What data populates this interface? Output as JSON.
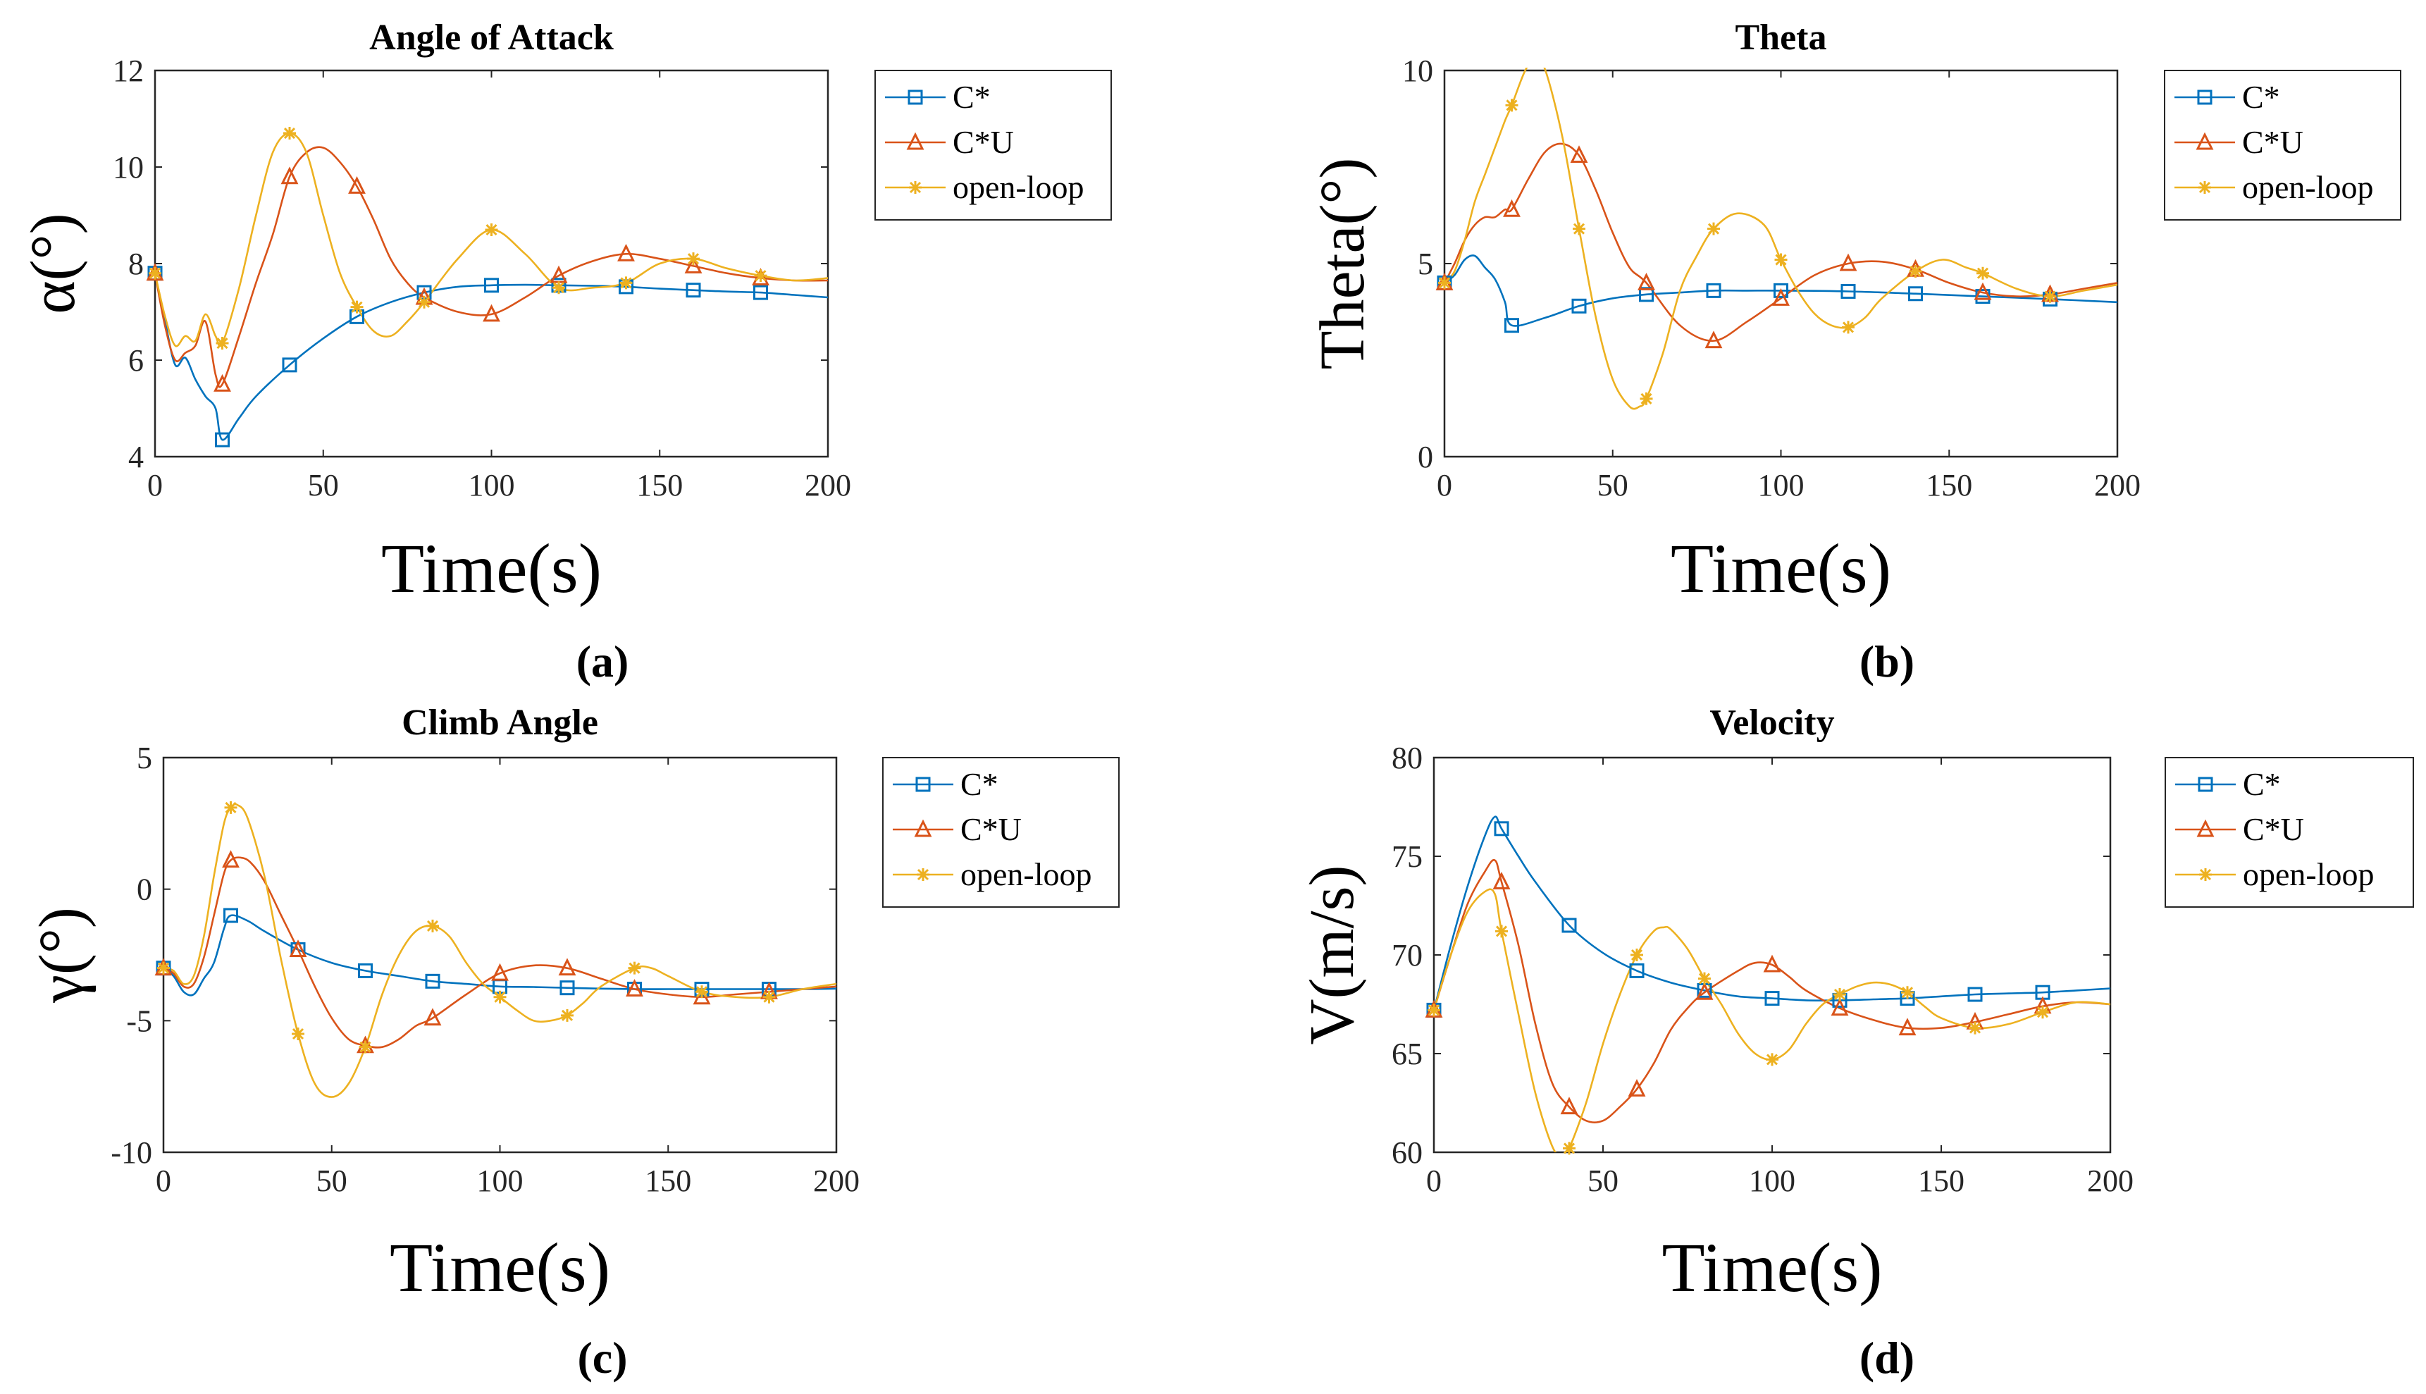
{
  "chart_data": [
    {
      "type": "line",
      "title": "Angle of Attack",
      "xlabel": "Time(s)",
      "ylabel": "α(°)",
      "caption_letter": "a",
      "xlim": [
        0,
        200
      ],
      "ylim": [
        4,
        12
      ],
      "xticks": [
        0,
        50,
        100,
        150,
        200
      ],
      "yticks": [
        4,
        6,
        8,
        10,
        12
      ],
      "legend": "outside-right",
      "series": [
        {
          "name": "C*",
          "color": "#0072BD",
          "marker": "square",
          "x": [
            0,
            3,
            6,
            9,
            12,
            15,
            18,
            20,
            25,
            30,
            40,
            50,
            60,
            70,
            80,
            90,
            100,
            110,
            120,
            130,
            140,
            150,
            160,
            170,
            180,
            190,
            200
          ],
          "y": [
            7.8,
            6.8,
            5.9,
            6.05,
            5.6,
            5.25,
            5.0,
            4.35,
            4.8,
            5.25,
            5.9,
            6.45,
            6.9,
            7.2,
            7.4,
            7.52,
            7.55,
            7.56,
            7.55,
            7.54,
            7.52,
            7.48,
            7.45,
            7.42,
            7.4,
            7.35,
            7.3
          ]
        },
        {
          "name": "C*U",
          "color": "#D95319",
          "marker": "triangle",
          "x": [
            0,
            3,
            6,
            9,
            12,
            15,
            18,
            20,
            25,
            30,
            35,
            40,
            45,
            50,
            55,
            60,
            65,
            70,
            75,
            80,
            90,
            100,
            110,
            120,
            130,
            140,
            150,
            160,
            170,
            180,
            190,
            200
          ],
          "y": [
            7.8,
            6.7,
            6.0,
            6.15,
            6.3,
            6.8,
            5.7,
            5.5,
            6.5,
            7.6,
            8.6,
            9.8,
            10.3,
            10.4,
            10.1,
            9.6,
            8.9,
            8.1,
            7.6,
            7.3,
            7.0,
            6.95,
            7.3,
            7.75,
            8.05,
            8.2,
            8.1,
            7.95,
            7.8,
            7.7,
            7.65,
            7.65
          ]
        },
        {
          "name": "open-loop",
          "color": "#EDB120",
          "marker": "star",
          "x": [
            0,
            3,
            6,
            9,
            12,
            15,
            18,
            20,
            25,
            30,
            35,
            40,
            45,
            50,
            55,
            60,
            65,
            70,
            75,
            80,
            90,
            100,
            110,
            120,
            130,
            140,
            150,
            160,
            170,
            180,
            190,
            200
          ],
          "y": [
            7.8,
            6.9,
            6.3,
            6.5,
            6.4,
            6.95,
            6.5,
            6.35,
            7.5,
            9.0,
            10.3,
            10.7,
            10.3,
            9.0,
            7.8,
            7.1,
            6.6,
            6.5,
            6.8,
            7.2,
            8.1,
            8.7,
            8.2,
            7.5,
            7.5,
            7.6,
            8.0,
            8.1,
            7.9,
            7.75,
            7.65,
            7.7
          ]
        }
      ]
    },
    {
      "type": "line",
      "title": "Theta",
      "xlabel": "Time(s)",
      "ylabel": "Theta(°)",
      "caption_letter": "b",
      "xlim": [
        0,
        200
      ],
      "ylim": [
        0,
        10
      ],
      "xticks": [
        0,
        50,
        100,
        150,
        200
      ],
      "yticks": [
        0,
        5,
        10
      ],
      "legend": "outside-right",
      "series": [
        {
          "name": "C*",
          "color": "#0072BD",
          "marker": "square",
          "x": [
            0,
            3,
            6,
            9,
            12,
            15,
            18,
            20,
            30,
            40,
            50,
            60,
            70,
            80,
            90,
            100,
            120,
            140,
            160,
            180,
            200
          ],
          "y": [
            4.5,
            4.7,
            5.1,
            5.2,
            4.9,
            4.6,
            4.0,
            3.4,
            3.6,
            3.9,
            4.1,
            4.2,
            4.25,
            4.3,
            4.3,
            4.3,
            4.28,
            4.22,
            4.15,
            4.08,
            4.0
          ]
        },
        {
          "name": "C*U",
          "color": "#D95319",
          "marker": "triangle",
          "x": [
            0,
            3,
            6,
            9,
            12,
            15,
            18,
            20,
            25,
            30,
            35,
            40,
            45,
            50,
            55,
            60,
            70,
            80,
            90,
            100,
            110,
            120,
            130,
            140,
            150,
            160,
            170,
            180,
            190,
            200
          ],
          "y": [
            4.5,
            5.0,
            5.6,
            6.0,
            6.2,
            6.2,
            6.4,
            6.4,
            7.2,
            7.9,
            8.1,
            7.8,
            6.9,
            5.8,
            4.9,
            4.5,
            3.4,
            3.0,
            3.5,
            4.1,
            4.7,
            5.0,
            5.05,
            4.85,
            4.5,
            4.25,
            4.15,
            4.2,
            4.35,
            4.5
          ]
        },
        {
          "name": "open-loop",
          "color": "#EDB120",
          "marker": "star",
          "x": [
            0,
            3,
            6,
            9,
            12,
            15,
            18,
            20,
            24,
            27,
            30,
            35,
            40,
            45,
            50,
            55,
            58,
            60,
            65,
            70,
            75,
            80,
            87,
            95,
            100,
            105,
            110,
            115,
            120,
            125,
            130,
            140,
            148,
            155,
            160,
            170,
            180,
            190,
            200
          ],
          "y": [
            4.5,
            4.8,
            5.6,
            6.6,
            7.3,
            8.0,
            8.7,
            9.1,
            10.0,
            10.3,
            10.0,
            8.3,
            5.9,
            3.6,
            2.0,
            1.3,
            1.3,
            1.5,
            2.7,
            4.3,
            5.2,
            5.9,
            6.3,
            6.0,
            5.1,
            4.3,
            3.7,
            3.4,
            3.35,
            3.6,
            4.1,
            4.8,
            5.1,
            4.9,
            4.75,
            4.35,
            4.15,
            4.3,
            4.45
          ]
        }
      ]
    },
    {
      "type": "line",
      "title": "Climb Angle",
      "xlabel": "Time(s)",
      "ylabel": "γ(°)",
      "caption_letter": "c",
      "xlim": [
        0,
        200
      ],
      "ylim": [
        -10,
        5
      ],
      "xticks": [
        0,
        50,
        100,
        150,
        200
      ],
      "yticks": [
        -10,
        -5,
        0,
        5
      ],
      "legend": "outside-right",
      "series": [
        {
          "name": "C*",
          "color": "#0072BD",
          "marker": "square",
          "x": [
            0,
            3,
            6,
            9,
            12,
            15,
            18,
            20,
            25,
            30,
            40,
            50,
            60,
            70,
            80,
            90,
            100,
            110,
            120,
            130,
            140,
            150,
            160,
            170,
            180,
            190,
            200
          ],
          "y": [
            -3.0,
            -3.3,
            -3.9,
            -4.0,
            -3.4,
            -2.8,
            -1.5,
            -1.0,
            -1.2,
            -1.6,
            -2.3,
            -2.8,
            -3.1,
            -3.3,
            -3.5,
            -3.6,
            -3.7,
            -3.72,
            -3.75,
            -3.78,
            -3.8,
            -3.8,
            -3.8,
            -3.8,
            -3.8,
            -3.8,
            -3.78
          ]
        },
        {
          "name": "C*U",
          "color": "#D95319",
          "marker": "triangle",
          "x": [
            0,
            3,
            6,
            9,
            12,
            15,
            18,
            20,
            23,
            26,
            30,
            35,
            40,
            45,
            50,
            55,
            60,
            65,
            70,
            75,
            80,
            90,
            100,
            110,
            120,
            130,
            140,
            150,
            160,
            170,
            180,
            190,
            200
          ],
          "y": [
            -3.0,
            -3.2,
            -3.7,
            -3.6,
            -2.6,
            -1.0,
            0.6,
            1.1,
            1.2,
            1.0,
            0.3,
            -1.0,
            -2.3,
            -3.7,
            -4.9,
            -5.7,
            -5.95,
            -6.0,
            -5.7,
            -5.2,
            -4.9,
            -4.0,
            -3.2,
            -2.9,
            -3.0,
            -3.4,
            -3.8,
            -4.0,
            -4.1,
            -4.0,
            -3.9,
            -3.8,
            -3.7
          ]
        },
        {
          "name": "open-loop",
          "color": "#EDB120",
          "marker": "star",
          "x": [
            0,
            3,
            6,
            9,
            12,
            15,
            18,
            20,
            22,
            25,
            30,
            35,
            40,
            45,
            50,
            55,
            60,
            65,
            70,
            75,
            80,
            85,
            90,
            95,
            100,
            105,
            110,
            115,
            120,
            125,
            130,
            140,
            145,
            150,
            160,
            170,
            180,
            190,
            200
          ],
          "y": [
            -3.0,
            -3.1,
            -3.6,
            -3.3,
            -1.8,
            0.5,
            2.5,
            3.1,
            3.2,
            2.7,
            0.5,
            -2.7,
            -5.5,
            -7.4,
            -7.9,
            -7.4,
            -6.0,
            -4.0,
            -2.5,
            -1.6,
            -1.4,
            -1.8,
            -2.8,
            -3.6,
            -4.1,
            -4.6,
            -5.0,
            -5.0,
            -4.8,
            -4.3,
            -3.7,
            -3.0,
            -3.0,
            -3.3,
            -3.9,
            -4.1,
            -4.1,
            -3.8,
            -3.6
          ]
        }
      ]
    },
    {
      "type": "line",
      "title": "Velocity",
      "xlabel": "Time(s)",
      "ylabel": "V(m/s)",
      "caption_letter": "d",
      "xlim": [
        0,
        200
      ],
      "ylim": [
        60,
        80
      ],
      "xticks": [
        0,
        50,
        100,
        150,
        200
      ],
      "yticks": [
        60,
        65,
        70,
        75,
        80
      ],
      "legend": "outside-right",
      "series": [
        {
          "name": "C*",
          "color": "#0072BD",
          "marker": "square",
          "x": [
            0,
            5,
            10,
            15,
            18,
            20,
            25,
            30,
            40,
            50,
            60,
            70,
            80,
            90,
            100,
            110,
            120,
            130,
            140,
            150,
            160,
            170,
            180,
            190,
            200
          ],
          "y": [
            67.2,
            70.5,
            73.5,
            76.0,
            77.0,
            76.4,
            75.0,
            73.7,
            71.5,
            70.1,
            69.2,
            68.6,
            68.2,
            67.9,
            67.8,
            67.7,
            67.7,
            67.75,
            67.8,
            67.9,
            68.0,
            68.05,
            68.1,
            68.2,
            68.3
          ]
        },
        {
          "name": "C*U",
          "color": "#D95319",
          "marker": "triangle",
          "x": [
            0,
            5,
            10,
            15,
            18,
            20,
            25,
            30,
            35,
            40,
            45,
            50,
            55,
            60,
            65,
            70,
            75,
            80,
            90,
            95,
            100,
            105,
            110,
            120,
            130,
            140,
            150,
            160,
            170,
            180,
            190,
            200
          ],
          "y": [
            67.2,
            70.0,
            72.6,
            74.2,
            74.8,
            73.7,
            70.5,
            66.5,
            63.5,
            62.3,
            61.6,
            61.6,
            62.3,
            63.2,
            64.5,
            66.2,
            67.3,
            68.1,
            69.2,
            69.6,
            69.5,
            68.9,
            68.2,
            67.3,
            66.7,
            66.3,
            66.3,
            66.6,
            67.0,
            67.4,
            67.6,
            67.5
          ]
        },
        {
          "name": "open-loop",
          "color": "#EDB120",
          "marker": "star",
          "x": [
            0,
            5,
            10,
            15,
            18,
            20,
            25,
            30,
            35,
            38,
            40,
            45,
            50,
            55,
            60,
            65,
            68,
            70,
            75,
            80,
            85,
            90,
            95,
            100,
            105,
            110,
            115,
            120,
            125,
            130,
            135,
            140,
            145,
            150,
            160,
            170,
            180,
            190,
            200
          ],
          "y": [
            67.2,
            70.0,
            72.2,
            73.2,
            73.1,
            71.2,
            67.0,
            63.0,
            60.3,
            59.8,
            60.2,
            62.5,
            65.5,
            68.0,
            70.0,
            71.2,
            71.4,
            71.3,
            70.3,
            68.8,
            67.5,
            66.0,
            65.0,
            64.7,
            65.2,
            66.5,
            67.5,
            68.0,
            68.4,
            68.6,
            68.5,
            68.1,
            67.4,
            66.8,
            66.3,
            66.5,
            67.1,
            67.6,
            67.5
          ]
        }
      ]
    }
  ]
}
